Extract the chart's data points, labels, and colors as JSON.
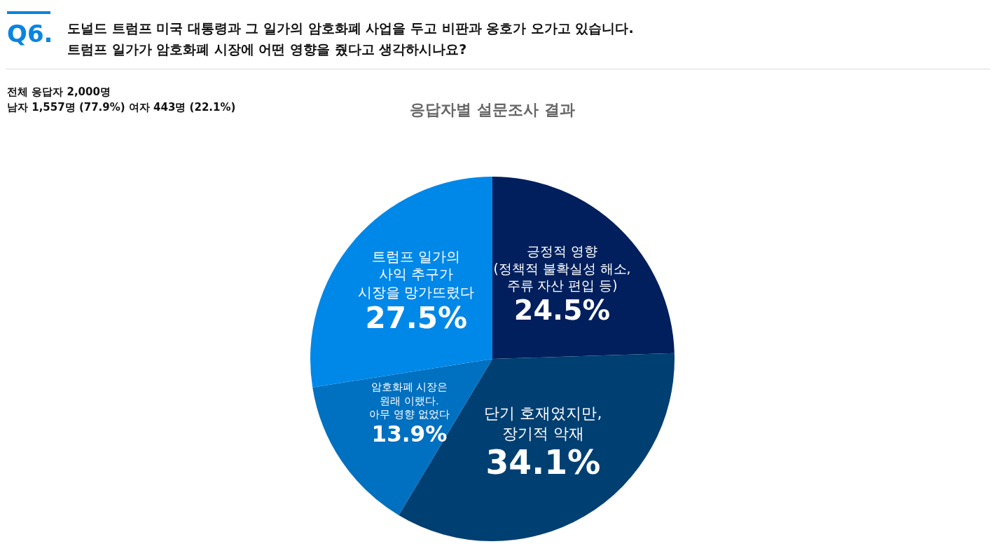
{
  "chart_data": {
    "type": "pie",
    "title": "도널드 트럼프 미국 대통령과 그 일가의 암호화폐 사업을 두고 비판과 옹호가 오가고 있습니다.\n트럼프 일가가 암호화폐 시장에 어떤 영향을 줬다고 생각하시나요?",
    "subtitle": "응답자별 설문조사 결과",
    "annotations": [
      "Q6.",
      "전체 응답자 2,000명",
      "남자 1,557명 (77.9%) 여자 443명 (22.1%)"
    ],
    "categories": [
      "긍정적 영향\n(정책적 불확실성 해소,\n주류 자산 편입 등)",
      "단기 호재였지만,\n장기적 악재",
      "암호화폐 시장은\n원래 이랬다.\n아무 영향 없었다",
      "트럼프 일가의\n사익 추구가\n시장을 망가뜨렸다"
    ],
    "values": [
      24.5,
      34.1,
      13.9,
      27.5
    ],
    "value_labels": [
      "24.5%",
      "34.1%",
      "13.9%",
      "27.5%"
    ],
    "colors": [
      "#001f5c",
      "#003f72",
      "#0070c0",
      "#0088e8"
    ],
    "legend": false
  }
}
